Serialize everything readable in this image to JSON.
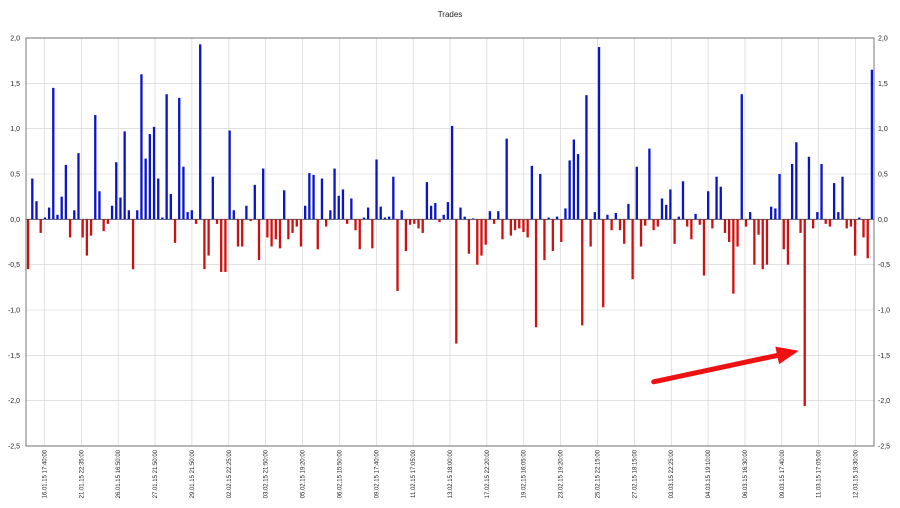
{
  "chart_data": {
    "type": "bar",
    "title": "Trades",
    "xlabel": "",
    "ylabel": "",
    "ylim": [
      -2.5,
      2.0
    ],
    "y_ticks": [
      "2,0",
      "1,5",
      "1,0",
      "0,5",
      "0,0",
      "-0,5",
      "-1,0",
      "-1,5",
      "-2,0",
      "-2,5"
    ],
    "y_tick_values": [
      2.0,
      1.5,
      1.0,
      0.5,
      0.0,
      -0.5,
      -1.0,
      -1.5,
      -2.0,
      -2.5
    ],
    "grid": true,
    "legend": "none",
    "colors": {
      "positive": "#0a14c8",
      "negative": "#d01010",
      "arrow": "#ee1111",
      "grid": "#cfcfcf",
      "axis": "#555555"
    },
    "x_labels": [
      "16.01.15 17:40:00",
      "21.01.15 22:35:00",
      "26.01.15 16:50:00",
      "27.01.15 21:50:00",
      "29.01.15 21:50:00",
      "02.02.15 22:25:00",
      "03.02.15 21:50:00",
      "05.02.15 19:20:00",
      "06.02.15 15:50:00",
      "09.02.15 17:40:00",
      "11.02.15 17:05:00",
      "13.02.15 18:00:00",
      "17.02.15 22:20:00",
      "19.02.15 16:05:00",
      "23.02.15 19:20:00",
      "25.02.15 22:15:00",
      "27.02.15 18:15:00",
      "03.03.15 22:25:00",
      "04.03.15 19:10:00",
      "06.03.15 16:30:00",
      "09.03.15 17:40:00",
      "11.03.15 17:05:00",
      "12.03.15 19:30:00"
    ],
    "values": [
      -0.55,
      0.45,
      0.2,
      -0.15,
      0.02,
      0.13,
      1.45,
      0.05,
      0.25,
      0.6,
      -0.2,
      0.1,
      0.73,
      -0.2,
      -0.4,
      -0.18,
      1.15,
      0.31,
      -0.13,
      -0.05,
      0.15,
      0.63,
      0.24,
      0.97,
      0.1,
      -0.55,
      0.1,
      1.6,
      0.67,
      0.94,
      1.02,
      0.45,
      0.02,
      1.38,
      0.28,
      -0.26,
      1.34,
      0.58,
      0.08,
      0.1,
      -0.05,
      1.93,
      -0.55,
      -0.4,
      0.47,
      -0.05,
      -0.58,
      -0.58,
      0.98,
      0.1,
      -0.3,
      -0.3,
      0.15,
      -0.02,
      0.38,
      -0.45,
      0.56,
      -0.2,
      -0.3,
      -0.22,
      -0.32,
      0.32,
      -0.22,
      -0.15,
      -0.08,
      -0.3,
      0.15,
      0.51,
      0.49,
      -0.33,
      0.45,
      -0.08,
      0.1,
      0.56,
      0.26,
      0.33,
      -0.05,
      0.23,
      -0.12,
      -0.33,
      0.02,
      0.13,
      -0.32,
      0.66,
      0.14,
      0.02,
      0.03,
      0.47,
      -0.79,
      0.1,
      -0.35,
      -0.06,
      -0.05,
      -0.1,
      -0.15,
      0.41,
      0.15,
      0.18,
      -0.03,
      0.05,
      0.19,
      1.03,
      -1.37,
      0.13,
      0.03,
      -0.38,
      0.01,
      -0.5,
      -0.4,
      -0.28,
      0.09,
      -0.05,
      0.09,
      -0.22,
      0.89,
      -0.18,
      -0.12,
      -0.1,
      -0.14,
      -0.2,
      0.59,
      -1.19,
      0.5,
      -0.45,
      0.02,
      -0.35,
      0.03,
      -0.25,
      0.12,
      0.65,
      0.88,
      0.72,
      -1.17,
      1.37,
      -0.3,
      0.08,
      1.9,
      -0.97,
      0.05,
      -0.12,
      0.07,
      -0.12,
      -0.27,
      0.17,
      -0.66,
      0.58,
      -0.3,
      -0.07,
      0.78,
      -0.12,
      -0.08,
      0.23,
      0.16,
      0.33,
      -0.27,
      0.03,
      0.42,
      -0.08,
      -0.22,
      0.06,
      -0.06,
      -0.62,
      0.31,
      -0.1,
      0.47,
      0.36,
      -0.15,
      -0.25,
      -0.82,
      -0.3,
      1.38,
      -0.08,
      0.08,
      -0.5,
      -0.17,
      -0.55,
      -0.5,
      0.14,
      0.12,
      0.5,
      -0.33,
      -0.5,
      0.61,
      0.85,
      -0.15,
      -2.06,
      0.69,
      -0.1,
      0.08,
      0.61,
      -0.05,
      -0.08,
      0.4,
      0.08,
      0.47,
      -0.1,
      -0.08,
      -0.4,
      0.02,
      -0.2,
      -0.43,
      1.65
    ]
  }
}
